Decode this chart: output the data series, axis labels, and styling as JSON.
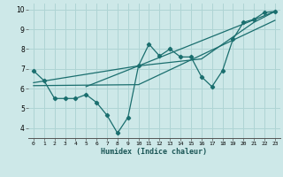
{
  "xlabel": "Humidex (Indice chaleur)",
  "ylabel": "",
  "bg_color": "#cde8e8",
  "grid_color": "#afd4d4",
  "line_color": "#1a6e6e",
  "xlim": [
    -0.5,
    23.5
  ],
  "ylim": [
    3.5,
    10.3
  ],
  "yticks": [
    4,
    5,
    6,
    7,
    8,
    9,
    10
  ],
  "xticks": [
    0,
    1,
    2,
    3,
    4,
    5,
    6,
    7,
    8,
    9,
    10,
    11,
    12,
    13,
    14,
    15,
    16,
    17,
    18,
    19,
    20,
    21,
    22,
    23
  ],
  "scatter_x": [
    0,
    1,
    2,
    3,
    4,
    5,
    6,
    7,
    8,
    9,
    10,
    11,
    12,
    13,
    14,
    15,
    16,
    17,
    18,
    19,
    20,
    21,
    22,
    23
  ],
  "scatter_y": [
    6.9,
    6.4,
    5.5,
    5.5,
    5.5,
    5.7,
    5.3,
    4.65,
    3.75,
    4.55,
    7.15,
    8.25,
    7.65,
    8.0,
    7.6,
    7.6,
    6.6,
    6.1,
    6.9,
    8.5,
    9.35,
    9.5,
    9.85,
    9.9
  ],
  "line1_x": [
    0,
    10,
    23
  ],
  "line1_y": [
    6.3,
    7.15,
    9.9
  ],
  "line2_x": [
    0,
    10,
    23
  ],
  "line2_y": [
    6.15,
    6.2,
    9.45
  ],
  "line3_x": [
    5,
    10,
    16,
    21,
    23
  ],
  "line3_y": [
    6.1,
    7.15,
    7.5,
    9.35,
    9.9
  ]
}
